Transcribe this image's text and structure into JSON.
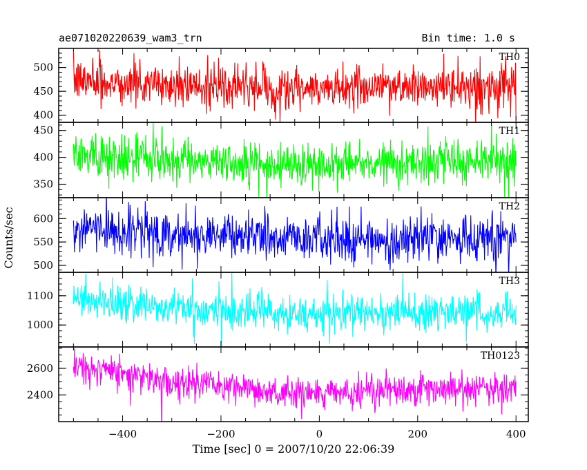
{
  "header": {
    "title": "ae071020220639_wam3_trn",
    "bin_time": "Bin time: 1.0 s"
  },
  "chart_data": {
    "type": "line",
    "ylabel": "Counts/sec",
    "xlabel": "Time [sec] 0 = 2007/10/20 22:06:39",
    "x_range": [
      -500,
      400
    ],
    "xlim": [
      -530,
      425
    ],
    "x_ticks": [
      -400,
      -200,
      0,
      200,
      400
    ],
    "x_minor_step": 50,
    "panels": [
      {
        "name": "TH0",
        "color": "#ff0000",
        "ylim": [
          385,
          540
        ],
        "y_ticks": [
          400,
          450,
          500
        ],
        "minor_step": 10,
        "profile": {
          "x": [
            -500,
            -300,
            -100,
            0,
            100,
            300,
            400
          ],
          "y": [
            472,
            462,
            455,
            452,
            462,
            458,
            455
          ]
        },
        "noise_sd": 22,
        "spike_sd": 45
      },
      {
        "name": "TH1",
        "color": "#00ff00",
        "ylim": [
          325,
          465
        ],
        "y_ticks": [
          350,
          400,
          450
        ],
        "minor_step": 10,
        "profile": {
          "x": [
            -500,
            -300,
            -100,
            0,
            100,
            300,
            400
          ],
          "y": [
            403,
            395,
            388,
            385,
            393,
            393,
            390
          ]
        },
        "noise_sd": 20,
        "spike_sd": 40
      },
      {
        "name": "TH2",
        "color": "#0000ff",
        "ylim": [
          485,
          645
        ],
        "y_ticks": [
          500,
          550,
          600
        ],
        "minor_step": 10,
        "profile": {
          "x": [
            -500,
            -300,
            -100,
            0,
            100,
            300,
            400
          ],
          "y": [
            580,
            568,
            558,
            553,
            555,
            558,
            556
          ]
        },
        "noise_sd": 25,
        "spike_sd": 50
      },
      {
        "name": "TH3",
        "color": "#00ffff",
        "ylim": [
          925,
          1180
        ],
        "y_ticks": [
          1000,
          1100
        ],
        "minor_step": 20,
        "profile": {
          "x": [
            -500,
            -300,
            -100,
            0,
            100,
            300,
            400
          ],
          "y": [
            1090,
            1060,
            1040,
            1030,
            1045,
            1045,
            1040
          ]
        },
        "noise_sd": 32,
        "spike_sd": 65
      },
      {
        "name": "TH0123",
        "color": "#ff00ff",
        "ylim": [
          2200,
          2760
        ],
        "y_ticks": [
          2400,
          2600
        ],
        "minor_step": 50,
        "profile": {
          "x": [
            -500,
            -400,
            -200,
            0,
            100,
            300,
            400
          ],
          "y": [
            2610,
            2560,
            2450,
            2400,
            2430,
            2450,
            2440
          ]
        },
        "noise_sd": 55,
        "spike_sd": 110
      }
    ]
  }
}
